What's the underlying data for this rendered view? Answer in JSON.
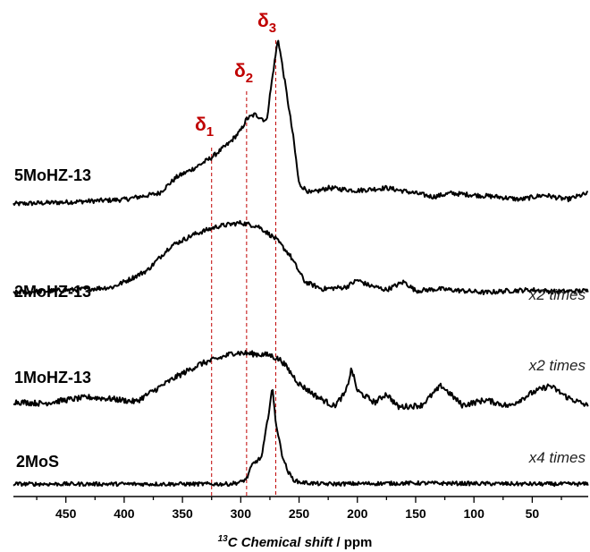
{
  "chart_data": {
    "type": "line",
    "xlabel_prefix": "13",
    "xlabel_italic": "C Chemical shift",
    "xlabel_unit": " / ppm",
    "xlim": [
      495,
      2
    ],
    "x_ticks": [
      450,
      400,
      350,
      300,
      250,
      200,
      150,
      100,
      50
    ],
    "guide_lines": [
      325,
      295,
      270
    ],
    "guide_color": "#c00000",
    "peak_labels": [
      {
        "text": "δ",
        "sub": "1",
        "x": 325
      },
      {
        "text": "δ",
        "sub": "2",
        "x": 295
      },
      {
        "text": "δ",
        "sub": "3",
        "x": 270
      }
    ],
    "series": [
      {
        "name": "5MoHZ-13",
        "multiplier": "",
        "points": [
          [
            495,
            0
          ],
          [
            450,
            2
          ],
          [
            400,
            5
          ],
          [
            370,
            12
          ],
          [
            355,
            30
          ],
          [
            340,
            40
          ],
          [
            325,
            52
          ],
          [
            310,
            68
          ],
          [
            300,
            82
          ],
          [
            295,
            95
          ],
          [
            288,
            100
          ],
          [
            282,
            96
          ],
          [
            278,
            92
          ],
          [
            272,
            150
          ],
          [
            268,
            185
          ],
          [
            262,
            135
          ],
          [
            255,
            75
          ],
          [
            250,
            22
          ],
          [
            240,
            12
          ],
          [
            225,
            18
          ],
          [
            200,
            15
          ],
          [
            175,
            18
          ],
          [
            150,
            12
          ],
          [
            135,
            8
          ],
          [
            120,
            12
          ],
          [
            100,
            10
          ],
          [
            80,
            8
          ],
          [
            60,
            5
          ],
          [
            40,
            10
          ],
          [
            20,
            5
          ],
          [
            2,
            12
          ]
        ]
      },
      {
        "name": "2MoHZ-13",
        "multiplier": "x2 times",
        "points": [
          [
            495,
            0
          ],
          [
            460,
            2
          ],
          [
            430,
            4
          ],
          [
            410,
            6
          ],
          [
            395,
            15
          ],
          [
            380,
            25
          ],
          [
            360,
            52
          ],
          [
            340,
            65
          ],
          [
            320,
            74
          ],
          [
            300,
            78
          ],
          [
            285,
            74
          ],
          [
            270,
            60
          ],
          [
            258,
            42
          ],
          [
            245,
            12
          ],
          [
            230,
            4
          ],
          [
            210,
            6
          ],
          [
            200,
            14
          ],
          [
            190,
            8
          ],
          [
            175,
            3
          ],
          [
            160,
            12
          ],
          [
            150,
            2
          ],
          [
            130,
            4
          ],
          [
            110,
            2
          ],
          [
            90,
            0
          ],
          [
            70,
            2
          ],
          [
            50,
            3
          ],
          [
            30,
            1
          ],
          [
            2,
            2
          ]
        ]
      },
      {
        "name": "1MoHZ-13",
        "multiplier": "x2 times",
        "points": [
          [
            495,
            0
          ],
          [
            470,
            -2
          ],
          [
            450,
            2
          ],
          [
            430,
            5
          ],
          [
            410,
            3
          ],
          [
            390,
            0
          ],
          [
            375,
            12
          ],
          [
            355,
            28
          ],
          [
            335,
            42
          ],
          [
            320,
            48
          ],
          [
            305,
            55
          ],
          [
            295,
            54
          ],
          [
            285,
            53
          ],
          [
            275,
            52
          ],
          [
            265,
            46
          ],
          [
            250,
            20
          ],
          [
            235,
            6
          ],
          [
            220,
            -5
          ],
          [
            210,
            10
          ],
          [
            205,
            37
          ],
          [
            200,
            12
          ],
          [
            185,
            -1
          ],
          [
            175,
            9
          ],
          [
            165,
            -6
          ],
          [
            145,
            -4
          ],
          [
            128,
            18
          ],
          [
            110,
            -4
          ],
          [
            90,
            2
          ],
          [
            70,
            -5
          ],
          [
            50,
            10
          ],
          [
            35,
            18
          ],
          [
            20,
            5
          ],
          [
            2,
            -5
          ]
        ]
      },
      {
        "name": "2MoS",
        "multiplier": "x4 times",
        "points": [
          [
            495,
            0
          ],
          [
            400,
            0
          ],
          [
            350,
            0
          ],
          [
            310,
            0
          ],
          [
            300,
            2
          ],
          [
            295,
            6
          ],
          [
            290,
            22
          ],
          [
            282,
            30
          ],
          [
            276,
            80
          ],
          [
            273,
            108
          ],
          [
            270,
            70
          ],
          [
            265,
            35
          ],
          [
            260,
            15
          ],
          [
            255,
            5
          ],
          [
            250,
            2
          ],
          [
            230,
            0
          ],
          [
            150,
            1
          ],
          [
            50,
            0
          ],
          [
            2,
            0
          ]
        ]
      }
    ]
  }
}
